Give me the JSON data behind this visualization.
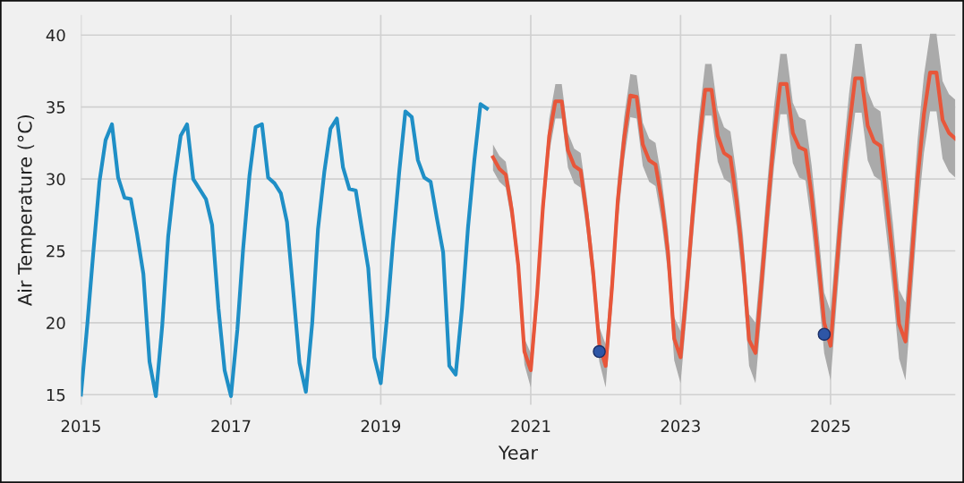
{
  "chart_data": {
    "type": "line",
    "xlabel": "Year",
    "ylabel": "Air Temperature (°C)",
    "xlim": [
      "2015-01",
      "2026-09"
    ],
    "ylim": [
      14.3,
      41.4
    ],
    "xticks": [
      {
        "value": "2015",
        "label": "2015"
      },
      {
        "value": "2017",
        "label": "2017"
      },
      {
        "value": "2019",
        "label": "2019"
      },
      {
        "value": "2021",
        "label": "2021"
      },
      {
        "value": "2023",
        "label": "2023"
      },
      {
        "value": "2025",
        "label": "2025"
      }
    ],
    "yticks": [
      15,
      20,
      25,
      30,
      35,
      40
    ],
    "grid": true,
    "marker": "none",
    "line_style": "solid",
    "series": [
      {
        "color": "#1f8fc6",
        "x": [
          "2015-01",
          "2015-02",
          "2015-03",
          "2015-04",
          "2015-05",
          "2015-06",
          "2015-07",
          "2015-08",
          "2015-09",
          "2015-10",
          "2015-11",
          "2015-12",
          "2016-01",
          "2016-02",
          "2016-03",
          "2016-04",
          "2016-05",
          "2016-06",
          "2016-07",
          "2016-08",
          "2016-09",
          "2016-10",
          "2016-11",
          "2016-12",
          "2017-01",
          "2017-02",
          "2017-03",
          "2017-04",
          "2017-05",
          "2017-06",
          "2017-07",
          "2017-08",
          "2017-09",
          "2017-10",
          "2017-11",
          "2017-12",
          "2018-01",
          "2018-02",
          "2018-03",
          "2018-04",
          "2018-05",
          "2018-06",
          "2018-07",
          "2018-08",
          "2018-09",
          "2018-10",
          "2018-11",
          "2018-12",
          "2019-01",
          "2019-02",
          "2019-03",
          "2019-04",
          "2019-05",
          "2019-06",
          "2019-07",
          "2019-08",
          "2019-09",
          "2019-10",
          "2019-11",
          "2019-12",
          "2020-01",
          "2020-02",
          "2020-03",
          "2020-04",
          "2020-05",
          "2020-06"
        ],
        "values": [
          15.0,
          19.9,
          24.7,
          29.8,
          32.7,
          33.8,
          30.1,
          28.7,
          28.6,
          26.2,
          23.4,
          17.3,
          14.9,
          19.8,
          26.0,
          30.0,
          33.0,
          33.8,
          30.0,
          29.3,
          28.6,
          26.8,
          21.0,
          16.7,
          14.9,
          19.5,
          25.1,
          30.2,
          33.6,
          33.8,
          30.1,
          29.7,
          29.0,
          27.0,
          22.1,
          17.2,
          15.2,
          20.0,
          26.5,
          30.5,
          33.5,
          34.2,
          30.8,
          29.3,
          29.2,
          26.5,
          23.8,
          17.6,
          15.8,
          20.5,
          25.5,
          30.5,
          34.7,
          34.3,
          31.3,
          30.1,
          29.8,
          27.3,
          24.9,
          17.0,
          16.4,
          21.0,
          26.6,
          31.3,
          35.2,
          34.9
        ]
      },
      {
        "color": "#e8563a",
        "x": [
          "2020-07",
          "2020-08",
          "2020-09",
          "2020-10",
          "2020-11",
          "2020-12",
          "2021-01",
          "2021-02",
          "2021-03",
          "2021-04",
          "2021-05",
          "2021-06",
          "2021-07",
          "2021-08",
          "2021-09",
          "2021-10",
          "2021-11",
          "2021-12",
          "2022-01",
          "2022-02",
          "2022-03",
          "2022-04",
          "2022-05",
          "2022-06",
          "2022-07",
          "2022-08",
          "2022-09",
          "2022-10",
          "2022-11",
          "2022-12",
          "2023-01",
          "2023-02",
          "2023-03",
          "2023-04",
          "2023-05",
          "2023-06",
          "2023-07",
          "2023-08",
          "2023-09",
          "2023-10",
          "2023-11",
          "2023-12",
          "2024-01",
          "2024-02",
          "2024-03",
          "2024-04",
          "2024-05",
          "2024-06",
          "2024-07",
          "2024-08",
          "2024-09",
          "2024-10",
          "2024-11",
          "2024-12",
          "2025-01",
          "2025-02",
          "2025-03",
          "2025-04",
          "2025-05",
          "2025-06",
          "2025-07",
          "2025-08",
          "2025-09",
          "2025-10",
          "2025-11",
          "2025-12",
          "2026-01",
          "2026-02",
          "2026-03",
          "2026-04",
          "2026-05",
          "2026-06",
          "2026-07",
          "2026-08",
          "2026-09"
        ],
        "values": [
          31.5,
          30.7,
          30.3,
          27.8,
          24.0,
          18.0,
          16.7,
          22.0,
          28.0,
          33.0,
          35.4,
          35.4,
          32.0,
          30.9,
          30.6,
          27.5,
          23.5,
          18.5,
          17.0,
          22.5,
          28.5,
          32.8,
          35.8,
          35.7,
          32.4,
          31.3,
          31.0,
          28.5,
          24.9,
          18.9,
          17.6,
          22.5,
          27.5,
          32.5,
          36.2,
          36.2,
          33.0,
          31.8,
          31.5,
          28.5,
          24.3,
          18.8,
          17.9,
          23.0,
          28.0,
          33.0,
          36.6,
          36.6,
          33.2,
          32.2,
          32.0,
          28.8,
          24.5,
          20.0,
          18.4,
          24.0,
          29.0,
          33.5,
          37.0,
          37.0,
          33.7,
          32.6,
          32.3,
          28.5,
          24.5,
          19.9,
          18.7,
          24.5,
          30.0,
          34.5,
          37.4,
          37.4,
          34.1,
          33.2,
          32.8
        ],
        "lower": [
          30.6,
          29.8,
          29.4,
          26.9,
          23.1,
          17.1,
          15.5,
          20.8,
          26.8,
          31.8,
          34.2,
          34.2,
          30.8,
          29.7,
          29.4,
          26.3,
          22.3,
          17.3,
          15.5,
          21.0,
          27.0,
          31.3,
          34.3,
          34.2,
          30.9,
          29.8,
          29.5,
          27.0,
          23.4,
          17.4,
          15.8,
          20.7,
          25.7,
          30.7,
          34.4,
          34.4,
          31.2,
          30.0,
          29.7,
          26.7,
          22.5,
          17.0,
          15.8,
          20.9,
          25.9,
          30.9,
          34.5,
          34.5,
          31.1,
          30.1,
          29.9,
          26.7,
          22.4,
          17.9,
          16.0,
          21.6,
          26.6,
          31.1,
          34.6,
          34.6,
          31.3,
          30.2,
          29.9,
          26.1,
          22.1,
          17.5,
          16.0,
          21.8,
          27.3,
          31.8,
          34.7,
          34.7,
          31.4,
          30.5,
          30.1
        ],
        "upper": [
          32.4,
          31.6,
          31.2,
          28.7,
          24.9,
          18.9,
          17.9,
          23.2,
          29.2,
          34.2,
          36.6,
          36.6,
          33.2,
          32.1,
          31.8,
          28.7,
          24.7,
          19.7,
          18.5,
          24.0,
          30.0,
          34.3,
          37.3,
          37.2,
          33.9,
          32.8,
          32.5,
          30.0,
          26.4,
          20.4,
          19.4,
          24.3,
          29.3,
          34.3,
          38.0,
          38.0,
          34.8,
          33.6,
          33.3,
          30.3,
          26.1,
          20.6,
          20.0,
          25.1,
          30.1,
          35.1,
          38.7,
          38.7,
          35.3,
          34.3,
          34.1,
          30.9,
          26.6,
          22.1,
          20.8,
          26.4,
          31.4,
          35.9,
          39.4,
          39.4,
          36.1,
          35.0,
          34.7,
          30.9,
          26.9,
          22.3,
          21.4,
          27.2,
          32.7,
          37.2,
          40.1,
          40.1,
          36.8,
          35.9,
          35.5
        ]
      },
      {
        "type": "scatter",
        "color": "#2e56a6",
        "marker": "circle",
        "x": [
          "2021-12",
          "2024-12"
        ],
        "values": [
          18.0,
          19.2
        ]
      }
    ]
  }
}
